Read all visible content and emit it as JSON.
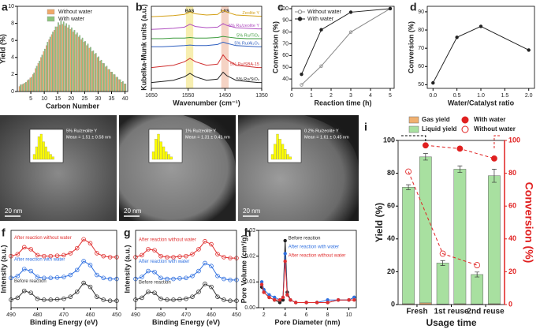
{
  "chart_data": [
    {
      "type": "bar",
      "panel": "a",
      "xlabel": "Carbon Number",
      "ylabel": "Yield (%)",
      "x": [
        1,
        2,
        3,
        4,
        5,
        6,
        7,
        8,
        9,
        10,
        11,
        12,
        13,
        14,
        15,
        16,
        17,
        18,
        19,
        20,
        21,
        22,
        23,
        24,
        25,
        26,
        27,
        28,
        29,
        30,
        31,
        32,
        33,
        34,
        35,
        36,
        37,
        38,
        39,
        40
      ],
      "xlim": [
        0,
        41
      ],
      "xticks": [
        5,
        10,
        15,
        20,
        25,
        30,
        35,
        40
      ],
      "ylim": [
        0,
        10
      ],
      "yticks": [
        0,
        2,
        4,
        6,
        8,
        10
      ],
      "legend": "upper left",
      "series": [
        {
          "name": "Without water",
          "color": "#f0a868",
          "values": [
            0.6,
            0.8,
            1.0,
            1.3,
            1.6,
            2.0,
            2.7,
            3.3,
            4.0,
            4.7,
            5.4,
            6.1,
            6.7,
            7.2,
            7.6,
            7.8,
            7.9,
            7.7,
            7.5,
            7.3,
            7.0,
            6.7,
            6.4,
            6.1,
            5.8,
            5.4,
            5.1,
            4.7,
            4.4,
            4.0,
            3.6,
            3.3,
            2.9,
            2.6,
            2.3,
            2.0,
            1.7,
            1.4,
            1.1,
            0.9
          ]
        },
        {
          "name": "With water",
          "color": "#8cc47c",
          "values": [
            0.8,
            0.9,
            1.1,
            1.4,
            1.7,
            2.2,
            3.0,
            3.6,
            4.3,
            5.0,
            5.8,
            6.4,
            7.0,
            7.6,
            8.1,
            8.3,
            8.2,
            8.0,
            7.8,
            7.5,
            7.2,
            6.9,
            6.6,
            6.3,
            5.9,
            5.6,
            5.2,
            4.8,
            4.5,
            4.1,
            3.7,
            3.3,
            3.0,
            2.6,
            2.3,
            2.0,
            1.7,
            1.4,
            1.2,
            0.9
          ]
        }
      ]
    },
    {
      "type": "line",
      "panel": "b",
      "xlabel": "Wavenumber (cm⁻¹)",
      "ylabel": "Kubelka-Munk units (a.u.)",
      "x": [
        1650,
        1620,
        1590,
        1560,
        1545,
        1530,
        1500,
        1470,
        1455,
        1445,
        1420,
        1390,
        1360,
        1350
      ],
      "xlim": [
        1650,
        1350
      ],
      "xticks": [
        1650,
        1550,
        1450,
        1350
      ],
      "ylim": [
        -0.3,
        6.8
      ],
      "bands": [
        {
          "label": "BAS",
          "from": 1556,
          "to": 1536,
          "color": "#f7eeb0"
        },
        {
          "label": "LAS",
          "from": 1460,
          "to": 1440,
          "color": "#f5d3c4"
        }
      ],
      "series": [
        {
          "name": "Zeolite Y",
          "color": "#d4a017",
          "values": [
            5.9,
            5.95,
            6.0,
            6.1,
            6.3,
            6.15,
            6.05,
            6.1,
            6.45,
            6.3,
            6.05,
            6.0,
            5.95,
            5.95
          ]
        },
        {
          "name": "5% Ru/zeolite Y",
          "color": "#b04fc0",
          "values": [
            4.8,
            4.85,
            4.9,
            5.0,
            5.25,
            5.05,
            4.95,
            5.0,
            5.3,
            5.15,
            4.95,
            4.9,
            4.85,
            4.85
          ]
        },
        {
          "name": "5% Ru/TiO₂",
          "color": "#3a9a3a",
          "values": [
            4.0,
            4.0,
            4.05,
            4.05,
            4.1,
            4.05,
            4.05,
            4.1,
            4.2,
            4.15,
            4.05,
            4.0,
            4.0,
            4.0
          ]
        },
        {
          "name": "5% Ru/Al₂O₃",
          "color": "#3060c0",
          "values": [
            3.3,
            3.3,
            3.35,
            3.4,
            3.45,
            3.4,
            3.4,
            3.5,
            3.7,
            3.6,
            3.4,
            3.35,
            3.3,
            3.3
          ]
        },
        {
          "name": "5% Ru/SBA-15",
          "color": "#d03030",
          "values": [
            1.5,
            1.6,
            1.7,
            2.0,
            2.3,
            2.0,
            1.7,
            1.8,
            2.6,
            2.2,
            1.7,
            1.6,
            1.5,
            1.5
          ]
        },
        {
          "name": "5% Ru/SiO₂",
          "color": "#222222",
          "values": [
            0.2,
            0.3,
            0.4,
            0.7,
            1.0,
            0.7,
            0.4,
            0.5,
            1.1,
            0.8,
            0.4,
            0.3,
            0.2,
            0.2
          ]
        }
      ]
    },
    {
      "type": "line",
      "panel": "c",
      "xlabel": "Reaction time (h)",
      "ylabel": "Conversion (%)",
      "xlim": [
        0,
        5.2
      ],
      "xticks": [
        0,
        1,
        2,
        3,
        4,
        5
      ],
      "ylim": [
        32,
        102
      ],
      "yticks": [
        40,
        50,
        60,
        70,
        80,
        90,
        100
      ],
      "legend": "upper left",
      "series": [
        {
          "name": "Without water",
          "color": "#888888",
          "marker": "open",
          "x": [
            0.5,
            1.5,
            3,
            5
          ],
          "values": [
            35,
            51,
            80,
            100
          ]
        },
        {
          "name": "With water",
          "color": "#222222",
          "marker": "filled",
          "x": [
            0.5,
            1.5,
            3,
            5
          ],
          "values": [
            44,
            82,
            97,
            100
          ]
        }
      ]
    },
    {
      "type": "line",
      "panel": "d",
      "xlabel": "Water/Catalyst ratio",
      "ylabel": "Conversion (%)",
      "xlim": [
        -0.12,
        2.12
      ],
      "xticks": [
        {
          "value": 0,
          "label": "0.0"
        },
        {
          "value": 0.5,
          "label": "0.5"
        },
        {
          "value": 1,
          "label": "1.0"
        },
        {
          "value": 1.5,
          "label": "1.5"
        },
        {
          "value": 2,
          "label": "2.0"
        }
      ],
      "ylim": [
        48,
        93
      ],
      "yticks": [
        50,
        60,
        70,
        80,
        90
      ],
      "series": [
        {
          "color": "#222222",
          "marker": "filled",
          "x": [
            0,
            0.5,
            1,
            2
          ],
          "values": [
            51,
            76,
            82,
            69
          ]
        }
      ]
    },
    {
      "type": "image",
      "panel": "e",
      "images": [
        {
          "label": "5% Ru/zeolite Y",
          "mean": "Mean = 1.51 ± 0.58 nm",
          "scale": "20 nm",
          "hist": [
            2,
            5,
            9,
            10,
            7,
            5,
            3,
            2,
            1
          ]
        },
        {
          "label": "1% Ru/zeolite Y",
          "mean": "Mean = 1.31 ± 0.41 nm",
          "scale": "20 nm",
          "hist": [
            3,
            8,
            10,
            7,
            5,
            3,
            2,
            1
          ]
        },
        {
          "label": "0.2% Ru/zeolite Y",
          "mean": "Mean = 1.61 ± 0.45 nm",
          "scale": "20 nm",
          "hist": [
            2,
            6,
            10,
            8,
            6,
            4,
            2,
            1
          ]
        }
      ]
    },
    {
      "type": "line",
      "panel": "f",
      "xlabel": "Binding Energy (eV)",
      "ylabel": "Intensity (a.u.)",
      "x": [
        490,
        487.5,
        485,
        482.5,
        480,
        477.5,
        475,
        472.5,
        470,
        467.5,
        465,
        462.5,
        460,
        457.5,
        455,
        452.5,
        450
      ],
      "xlim": [
        490,
        450
      ],
      "xticks": [
        490,
        480,
        470,
        460,
        450
      ],
      "ylim": [
        -0.3,
        3.6
      ],
      "marker": "open",
      "series": [
        {
          "name": "After reaction without water",
          "color": "#e03030",
          "values": [
            2.3,
            2.4,
            2.75,
            2.65,
            2.35,
            2.3,
            2.3,
            2.32,
            2.35,
            2.45,
            2.7,
            3.15,
            2.95,
            2.45,
            2.3,
            2.25,
            2.25
          ]
        },
        {
          "name": "After reaction with water",
          "color": "#3070e0",
          "values": [
            1.2,
            1.3,
            1.65,
            1.55,
            1.25,
            1.2,
            1.2,
            1.22,
            1.25,
            1.35,
            1.6,
            2.05,
            1.85,
            1.35,
            1.2,
            1.15,
            1.15
          ]
        },
        {
          "name": "Before reaction",
          "color": "#333333",
          "values": [
            0.1,
            0.2,
            0.55,
            0.45,
            0.15,
            0.1,
            0.1,
            0.12,
            0.15,
            0.25,
            0.5,
            0.95,
            0.75,
            0.25,
            0.1,
            0.05,
            0.05
          ]
        }
      ]
    },
    {
      "type": "line",
      "panel": "g",
      "xlabel": "Binding Energy (eV)",
      "ylabel": "Intensity (a.u.)",
      "x": [
        490,
        487.5,
        485,
        482.5,
        480,
        477.5,
        475,
        472.5,
        470,
        467.5,
        465,
        462.5,
        460,
        457.5,
        455,
        452.5,
        450
      ],
      "xlim": [
        490,
        450
      ],
      "xticks": [
        490,
        480,
        470,
        460,
        450
      ],
      "ylim": [
        -0.3,
        3.6
      ],
      "marker": "open",
      "series": [
        {
          "name": "After reaction without water",
          "color": "#e03030",
          "values": [
            2.25,
            2.35,
            2.65,
            2.6,
            2.3,
            2.25,
            2.25,
            2.28,
            2.3,
            2.4,
            2.65,
            3.05,
            2.9,
            2.4,
            2.25,
            2.2,
            2.2
          ]
        },
        {
          "name": "After reaction with water",
          "color": "#3070e0",
          "values": [
            1.15,
            1.25,
            1.55,
            1.5,
            1.2,
            1.15,
            1.15,
            1.18,
            1.2,
            1.3,
            1.55,
            1.95,
            1.8,
            1.3,
            1.15,
            1.1,
            1.1
          ]
        },
        {
          "name": "Before reaction",
          "color": "#333333",
          "values": [
            0.1,
            0.2,
            0.5,
            0.45,
            0.15,
            0.1,
            0.1,
            0.12,
            0.15,
            0.25,
            0.5,
            0.9,
            0.75,
            0.25,
            0.1,
            0.05,
            0.05
          ]
        }
      ]
    },
    {
      "type": "line",
      "panel": "h",
      "xlabel": "Pore Diameter (nm)",
      "ylabel": "Pore Volume (cm³/g)",
      "x": [
        1.8,
        2,
        2.5,
        3,
        3.5,
        3.8,
        4,
        4.2,
        4.5,
        5,
        6,
        7,
        8,
        9,
        10,
        10.5
      ],
      "xlim": [
        1.5,
        10.7
      ],
      "xticks": [
        2,
        4,
        6,
        8,
        10
      ],
      "ylim": [
        0,
        0.03
      ],
      "yticks": [
        {
          "value": 0,
          "label": "0.00"
        },
        {
          "value": 0.01,
          "label": "0.01"
        },
        {
          "value": 0.02,
          "label": "0.02"
        },
        {
          "value": 0.03,
          "label": "0.03"
        }
      ],
      "marker": "filled",
      "series": [
        {
          "name": "Before reaction",
          "color": "#222222",
          "values": [
            0.008,
            0.006,
            0.004,
            0.003,
            0.002,
            0.003,
            0.026,
            0.006,
            0.003,
            0.002,
            0.002,
            0.002,
            0.002,
            0.003,
            0.003,
            0.004
          ]
        },
        {
          "name": "After reaction with water",
          "color": "#3070e0",
          "values": [
            0.01,
            0.007,
            0.005,
            0.004,
            0.003,
            0.004,
            0.021,
            0.005,
            0.003,
            0.002,
            0.002,
            0.002,
            0.003,
            0.003,
            0.003,
            0.004
          ]
        },
        {
          "name": "After reaction without water",
          "color": "#e03030",
          "values": [
            0.009,
            0.006,
            0.004,
            0.003,
            0.003,
            0.004,
            0.018,
            0.005,
            0.003,
            0.002,
            0.002,
            0.002,
            0.002,
            0.003,
            0.003,
            0.003
          ]
        }
      ]
    },
    {
      "type": "bar",
      "panel": "i",
      "xlabel": "Usage time",
      "ylabel": "Yield (%)",
      "y2label": "Conversion (%)",
      "x": [
        1,
        2,
        3,
        4,
        5,
        6
      ],
      "xlim": [
        0.4,
        6.6
      ],
      "xticks": [
        {
          "value": 1.5,
          "label": "Fresh"
        },
        {
          "value": 3.5,
          "label": "1st reuse"
        },
        {
          "value": 5.5,
          "label": "2nd reuse"
        }
      ],
      "ylim": [
        0,
        100
      ],
      "yticks": [
        0,
        20,
        40,
        60,
        80,
        100
      ],
      "y2lim": [
        0,
        100
      ],
      "y2ticks": [
        0,
        20,
        40,
        60,
        80,
        100
      ],
      "y2color": "#e02020",
      "series": [
        {
          "name": "Gas yield",
          "color": "#f0b070",
          "values": [
            0.5,
            1,
            0.3,
            0.5,
            0.3,
            0.5
          ]
        },
        {
          "name": "Liquid yield",
          "color": "#a8e0a0",
          "values": [
            71,
            89,
            25,
            82,
            18,
            78
          ],
          "errors": [
            1.5,
            2,
            1.5,
            2,
            1.5,
            4
          ]
        },
        {
          "name": "With water",
          "type": "line",
          "axis": "y2",
          "color": "#e02020",
          "marker": "filled",
          "dash": true,
          "x": [
            2,
            4,
            6
          ],
          "values": [
            97,
            95,
            89
          ]
        },
        {
          "name": "Without water",
          "type": "line",
          "axis": "y2",
          "color": "#e02020",
          "marker": "open",
          "dash": true,
          "x": [
            1,
            3,
            5
          ],
          "values": [
            81,
            31,
            24
          ]
        }
      ]
    }
  ]
}
